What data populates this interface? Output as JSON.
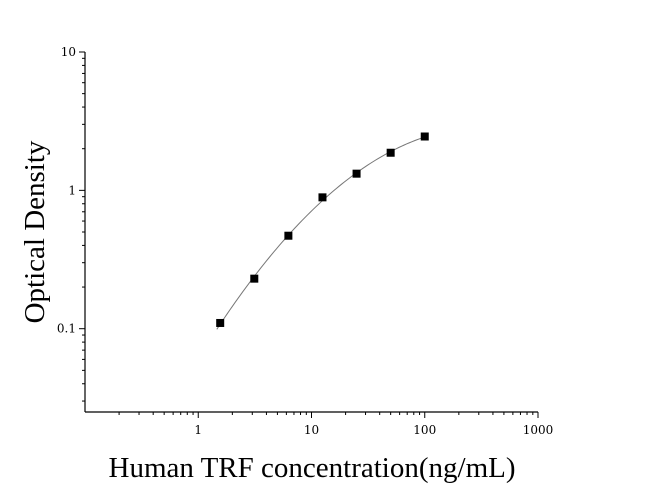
{
  "chart_data": {
    "type": "scatter",
    "title": "",
    "xlabel": "Human TRF concentration(ng/mL)",
    "ylabel": "Optical Density",
    "x_scale": "log",
    "y_scale": "log",
    "xlim": [
      0.1,
      1000
    ],
    "ylim": [
      0.025,
      10
    ],
    "x_ticks": [
      {
        "value": 1,
        "label": "1"
      },
      {
        "value": 10,
        "label": "10"
      },
      {
        "value": 100,
        "label": "100"
      },
      {
        "value": 1000,
        "label": "1000"
      }
    ],
    "y_ticks": [
      {
        "value": 0.1,
        "label": "0.1"
      },
      {
        "value": 1,
        "label": "1"
      },
      {
        "value": 10,
        "label": "10"
      }
    ],
    "grid": false,
    "legend": "none",
    "series": [
      {
        "x": [
          1.5625,
          3.125,
          6.25,
          12.5,
          25,
          50,
          100
        ],
        "y": [
          0.11,
          0.23,
          0.47,
          0.89,
          1.32,
          1.87,
          2.45
        ]
      }
    ],
    "fit_curve": true,
    "colors": {
      "markers": "#000000",
      "curve": "#777777",
      "axes": "#000000"
    }
  }
}
